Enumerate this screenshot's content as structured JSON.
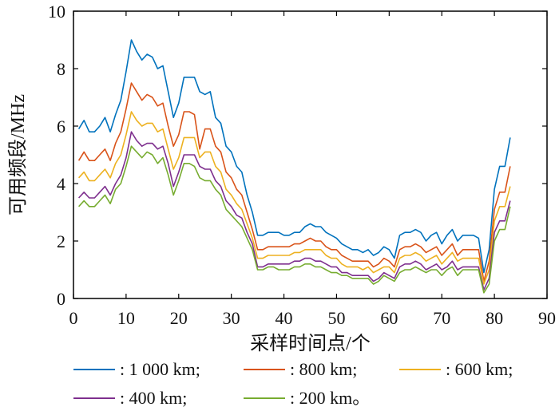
{
  "chart_data": {
    "type": "line",
    "xlabel": "采样时间点/个",
    "ylabel": "可用频段/MHz",
    "xlim": [
      0,
      90
    ],
    "ylim": [
      0,
      10
    ],
    "xticks": [
      0,
      10,
      20,
      30,
      40,
      50,
      60,
      70,
      80,
      90
    ],
    "yticks": [
      0,
      2,
      4,
      6,
      8,
      10
    ],
    "grid": false,
    "legend_position": "bottom",
    "x": [
      1,
      2,
      3,
      4,
      5,
      6,
      7,
      8,
      9,
      10,
      11,
      12,
      13,
      14,
      15,
      16,
      17,
      18,
      19,
      20,
      21,
      22,
      23,
      24,
      25,
      26,
      27,
      28,
      29,
      30,
      31,
      32,
      33,
      34,
      35,
      36,
      37,
      38,
      39,
      40,
      41,
      42,
      43,
      44,
      45,
      46,
      47,
      48,
      49,
      50,
      51,
      52,
      53,
      54,
      55,
      56,
      57,
      58,
      59,
      60,
      61,
      62,
      63,
      64,
      65,
      66,
      67,
      68,
      69,
      70,
      71,
      72,
      73,
      74,
      75,
      76,
      77,
      78,
      79,
      80,
      81,
      82,
      83
    ],
    "series": [
      {
        "name": ": 1 000 km;",
        "color": "#0072BD",
        "values": [
          5.9,
          6.2,
          5.8,
          5.8,
          6.0,
          6.3,
          5.8,
          6.4,
          6.9,
          7.9,
          9.0,
          8.6,
          8.3,
          8.5,
          8.4,
          8.0,
          8.1,
          7.2,
          6.3,
          6.8,
          7.7,
          7.7,
          7.7,
          7.2,
          7.1,
          7.2,
          6.3,
          6.1,
          5.3,
          5.1,
          4.6,
          4.4,
          3.6,
          3.0,
          2.2,
          2.2,
          2.3,
          2.3,
          2.3,
          2.2,
          2.2,
          2.3,
          2.3,
          2.5,
          2.6,
          2.5,
          2.5,
          2.3,
          2.2,
          2.1,
          1.9,
          1.8,
          1.7,
          1.7,
          1.6,
          1.7,
          1.5,
          1.6,
          1.8,
          1.7,
          1.4,
          2.2,
          2.3,
          2.3,
          2.4,
          2.3,
          2.0,
          2.2,
          2.3,
          1.9,
          2.2,
          2.4,
          2.0,
          2.2,
          2.2,
          2.2,
          2.1,
          0.9,
          1.7,
          3.8,
          4.6,
          4.6,
          5.6
        ]
      },
      {
        "name": ": 800 km;",
        "color": "#D95319",
        "values": [
          4.8,
          5.1,
          4.8,
          4.8,
          5.0,
          5.2,
          4.8,
          5.4,
          5.8,
          6.6,
          7.5,
          7.2,
          6.9,
          7.1,
          7.0,
          6.7,
          6.8,
          6.0,
          5.3,
          5.7,
          6.5,
          6.5,
          6.4,
          5.2,
          5.9,
          5.9,
          5.3,
          5.1,
          4.4,
          4.2,
          3.8,
          3.6,
          3.0,
          2.4,
          1.7,
          1.7,
          1.8,
          1.8,
          1.8,
          1.8,
          1.8,
          1.9,
          1.9,
          2.0,
          2.1,
          2.0,
          2.0,
          1.8,
          1.7,
          1.7,
          1.5,
          1.4,
          1.3,
          1.3,
          1.3,
          1.3,
          1.1,
          1.2,
          1.4,
          1.3,
          1.1,
          1.7,
          1.8,
          1.8,
          1.9,
          1.8,
          1.6,
          1.7,
          1.8,
          1.5,
          1.7,
          1.9,
          1.5,
          1.7,
          1.7,
          1.7,
          1.7,
          0.6,
          1.3,
          3.1,
          3.7,
          3.7,
          4.6
        ]
      },
      {
        "name": ": 600 km;",
        "color": "#EDB120",
        "values": [
          4.2,
          4.4,
          4.1,
          4.1,
          4.3,
          4.5,
          4.2,
          4.7,
          5.0,
          5.7,
          6.5,
          6.2,
          6.0,
          6.1,
          6.1,
          5.8,
          5.9,
          5.2,
          4.5,
          4.9,
          5.6,
          5.6,
          5.6,
          4.9,
          5.1,
          5.1,
          4.6,
          4.4,
          3.8,
          3.6,
          3.3,
          3.1,
          2.6,
          2.1,
          1.4,
          1.4,
          1.5,
          1.5,
          1.5,
          1.5,
          1.5,
          1.6,
          1.6,
          1.7,
          1.7,
          1.7,
          1.7,
          1.5,
          1.4,
          1.4,
          1.2,
          1.1,
          1.1,
          1.1,
          1.0,
          1.1,
          0.9,
          1.0,
          1.1,
          1.1,
          0.9,
          1.4,
          1.5,
          1.5,
          1.6,
          1.5,
          1.3,
          1.4,
          1.5,
          1.2,
          1.4,
          1.6,
          1.3,
          1.4,
          1.4,
          1.4,
          1.4,
          0.5,
          1.0,
          2.7,
          3.2,
          3.2,
          3.9
        ]
      },
      {
        "name": ": 400 km;",
        "color": "#7E2F8E",
        "values": [
          3.5,
          3.7,
          3.5,
          3.5,
          3.7,
          3.9,
          3.6,
          4.0,
          4.3,
          4.9,
          5.8,
          5.5,
          5.3,
          5.4,
          5.4,
          5.2,
          5.3,
          4.7,
          3.9,
          4.4,
          5.0,
          5.0,
          5.0,
          4.6,
          4.5,
          4.5,
          4.1,
          3.9,
          3.4,
          3.2,
          2.9,
          2.8,
          2.3,
          1.9,
          1.1,
          1.1,
          1.2,
          1.2,
          1.2,
          1.2,
          1.2,
          1.3,
          1.3,
          1.4,
          1.4,
          1.3,
          1.3,
          1.2,
          1.1,
          1.1,
          0.9,
          0.9,
          0.8,
          0.8,
          0.8,
          0.8,
          0.6,
          0.7,
          0.9,
          0.8,
          0.7,
          1.1,
          1.2,
          1.2,
          1.3,
          1.2,
          1.0,
          1.1,
          1.2,
          1.0,
          1.1,
          1.3,
          1.0,
          1.1,
          1.1,
          1.1,
          1.1,
          0.3,
          0.7,
          2.3,
          2.7,
          2.7,
          3.4
        ]
      },
      {
        "name": ": 200 km。",
        "color": "#77AC30",
        "values": [
          3.2,
          3.4,
          3.2,
          3.2,
          3.4,
          3.6,
          3.3,
          3.8,
          4.0,
          4.6,
          5.3,
          5.1,
          4.9,
          5.1,
          5.0,
          4.7,
          4.9,
          4.3,
          3.6,
          4.1,
          4.7,
          4.7,
          4.6,
          4.2,
          4.1,
          4.1,
          3.8,
          3.6,
          3.1,
          2.9,
          2.7,
          2.5,
          2.1,
          1.7,
          1.0,
          1.0,
          1.1,
          1.1,
          1.0,
          1.0,
          1.0,
          1.1,
          1.1,
          1.2,
          1.2,
          1.1,
          1.1,
          1.0,
          0.9,
          0.9,
          0.8,
          0.8,
          0.7,
          0.7,
          0.7,
          0.7,
          0.5,
          0.6,
          0.8,
          0.7,
          0.6,
          0.9,
          1.0,
          1.0,
          1.1,
          1.0,
          0.9,
          1.0,
          1.0,
          0.8,
          1.0,
          1.1,
          0.8,
          1.0,
          1.0,
          1.0,
          1.0,
          0.2,
          0.5,
          2.0,
          2.4,
          2.4,
          3.2
        ]
      }
    ]
  }
}
